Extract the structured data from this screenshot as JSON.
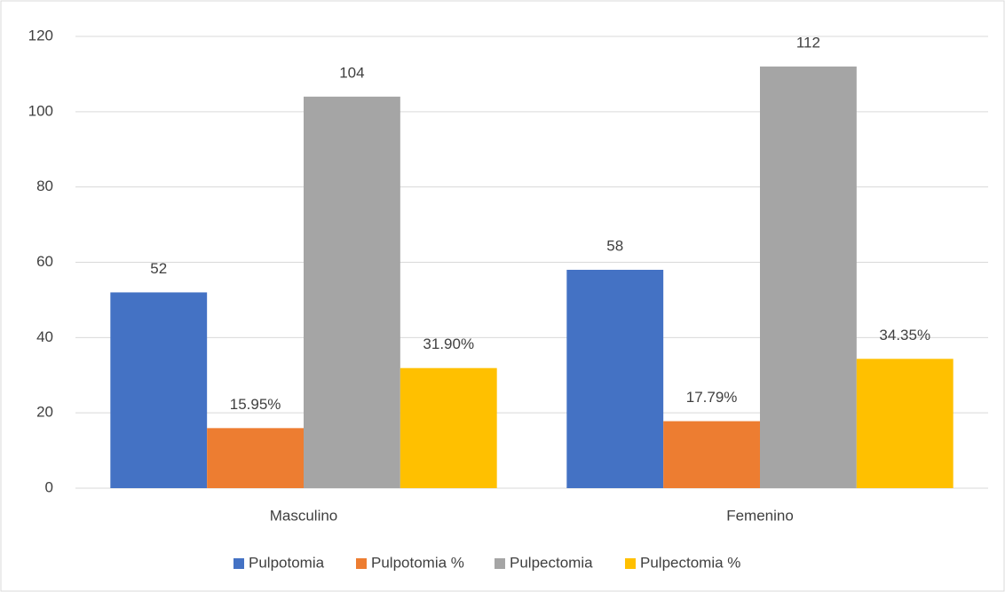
{
  "chart_data": {
    "type": "bar",
    "categories": [
      "Masculino",
      "Femenino"
    ],
    "series": [
      {
        "name": "Pulpotomia",
        "color": "#4472c4",
        "values": [
          52,
          58
        ]
      },
      {
        "name": "Pulpotomia %",
        "color": "#ed7d31",
        "values": [
          15.95,
          17.79
        ],
        "value_labels": [
          "15.95%",
          "17.79%"
        ]
      },
      {
        "name": "Pulpectomia",
        "color": "#a5a5a5",
        "values": [
          104,
          112
        ]
      },
      {
        "name": "Pulpectomia %",
        "color": "#ffc000",
        "values": [
          31.9,
          34.35
        ],
        "value_labels": [
          "31.90%",
          "34.35%"
        ]
      }
    ],
    "ylim": [
      0,
      120
    ],
    "yticks": [
      0,
      20,
      40,
      60,
      80,
      100,
      120
    ],
    "grid": true,
    "legend": "bottom"
  }
}
